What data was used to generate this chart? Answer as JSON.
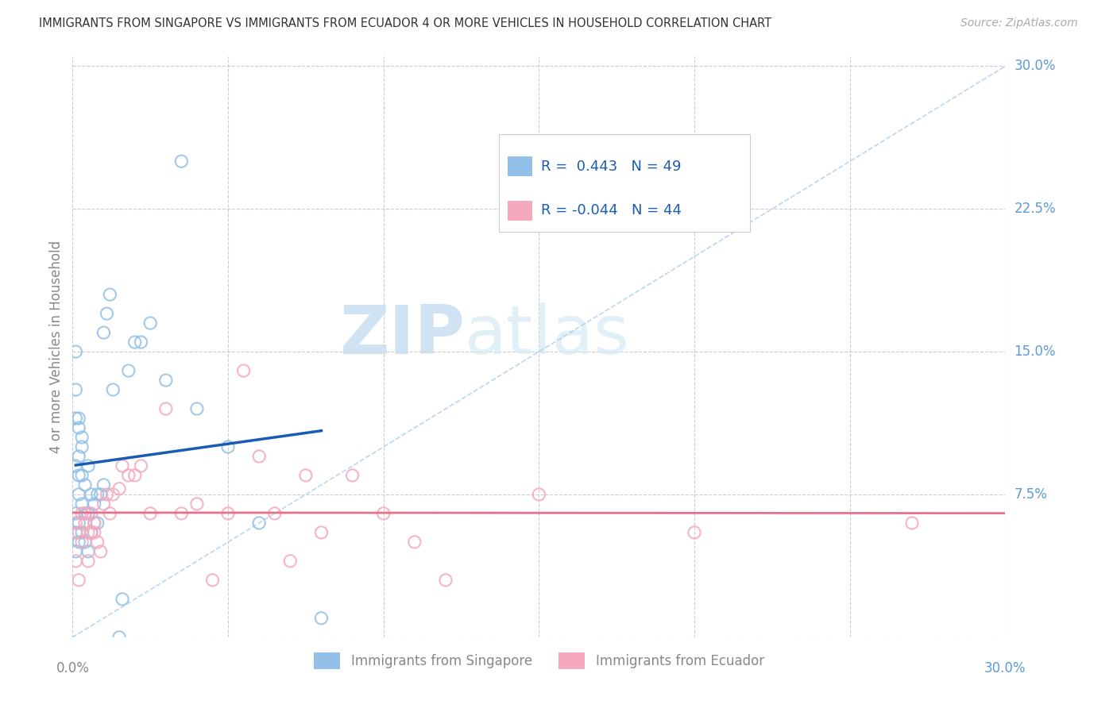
{
  "title": "IMMIGRANTS FROM SINGAPORE VS IMMIGRANTS FROM ECUADOR 4 OR MORE VEHICLES IN HOUSEHOLD CORRELATION CHART",
  "source": "Source: ZipAtlas.com",
  "ylabel": "4 or more Vehicles in Household",
  "xlim": [
    0.0,
    0.3
  ],
  "ylim": [
    0.0,
    0.305
  ],
  "right_yticks": [
    0.0,
    0.075,
    0.15,
    0.225,
    0.3
  ],
  "right_ytick_labels": [
    "",
    "7.5%",
    "15.0%",
    "22.5%",
    "30.0%"
  ],
  "x_gridlines": [
    0.0,
    0.05,
    0.1,
    0.15,
    0.2,
    0.25,
    0.3
  ],
  "singapore_color": "#92C0E8",
  "ecuador_color": "#F5A8BE",
  "singapore_line_color": "#1A5CB5",
  "ecuador_line_color": "#E8708A",
  "dashed_line_color": "#AACCEE",
  "legend_singapore_label": "Immigrants from Singapore",
  "legend_ecuador_label": "Immigrants from Ecuador",
  "R_singapore": 0.443,
  "N_singapore": 49,
  "R_ecuador": -0.044,
  "N_ecuador": 44,
  "watermark_zip": "ZIP",
  "watermark_atlas": "atlas",
  "background_color": "#FFFFFF",
  "grid_color": "#CCCCCC",
  "singapore_x": [
    0.001,
    0.001,
    0.001,
    0.001,
    0.002,
    0.002,
    0.002,
    0.002,
    0.002,
    0.003,
    0.003,
    0.003,
    0.003,
    0.004,
    0.004,
    0.004,
    0.005,
    0.005,
    0.005,
    0.006,
    0.006,
    0.007,
    0.007,
    0.008,
    0.008,
    0.009,
    0.01,
    0.01,
    0.011,
    0.012,
    0.013,
    0.015,
    0.016,
    0.018,
    0.02,
    0.022,
    0.025,
    0.03,
    0.035,
    0.04,
    0.05,
    0.06,
    0.08,
    0.001,
    0.002,
    0.003,
    0.001,
    0.002,
    0.001
  ],
  "singapore_y": [
    0.045,
    0.065,
    0.09,
    0.115,
    0.05,
    0.06,
    0.075,
    0.095,
    0.11,
    0.055,
    0.07,
    0.085,
    0.1,
    0.05,
    0.065,
    0.08,
    0.045,
    0.065,
    0.09,
    0.055,
    0.075,
    0.06,
    0.07,
    0.06,
    0.075,
    0.075,
    0.08,
    0.16,
    0.17,
    0.18,
    0.13,
    0.0,
    0.02,
    0.14,
    0.155,
    0.155,
    0.165,
    0.135,
    0.25,
    0.12,
    0.1,
    0.06,
    0.01,
    0.13,
    0.115,
    0.105,
    0.055,
    0.085,
    0.15
  ],
  "ecuador_x": [
    0.001,
    0.001,
    0.002,
    0.002,
    0.003,
    0.003,
    0.004,
    0.004,
    0.005,
    0.005,
    0.006,
    0.006,
    0.007,
    0.007,
    0.008,
    0.009,
    0.01,
    0.011,
    0.012,
    0.013,
    0.015,
    0.016,
    0.018,
    0.02,
    0.022,
    0.025,
    0.03,
    0.035,
    0.04,
    0.045,
    0.05,
    0.055,
    0.06,
    0.065,
    0.07,
    0.075,
    0.08,
    0.09,
    0.1,
    0.11,
    0.12,
    0.15,
    0.2,
    0.27
  ],
  "ecuador_y": [
    0.06,
    0.04,
    0.055,
    0.03,
    0.05,
    0.065,
    0.06,
    0.065,
    0.055,
    0.04,
    0.065,
    0.055,
    0.06,
    0.055,
    0.05,
    0.045,
    0.07,
    0.075,
    0.065,
    0.075,
    0.078,
    0.09,
    0.085,
    0.085,
    0.09,
    0.065,
    0.12,
    0.065,
    0.07,
    0.03,
    0.065,
    0.14,
    0.095,
    0.065,
    0.04,
    0.085,
    0.055,
    0.085,
    0.065,
    0.05,
    0.03,
    0.075,
    0.055,
    0.06
  ]
}
